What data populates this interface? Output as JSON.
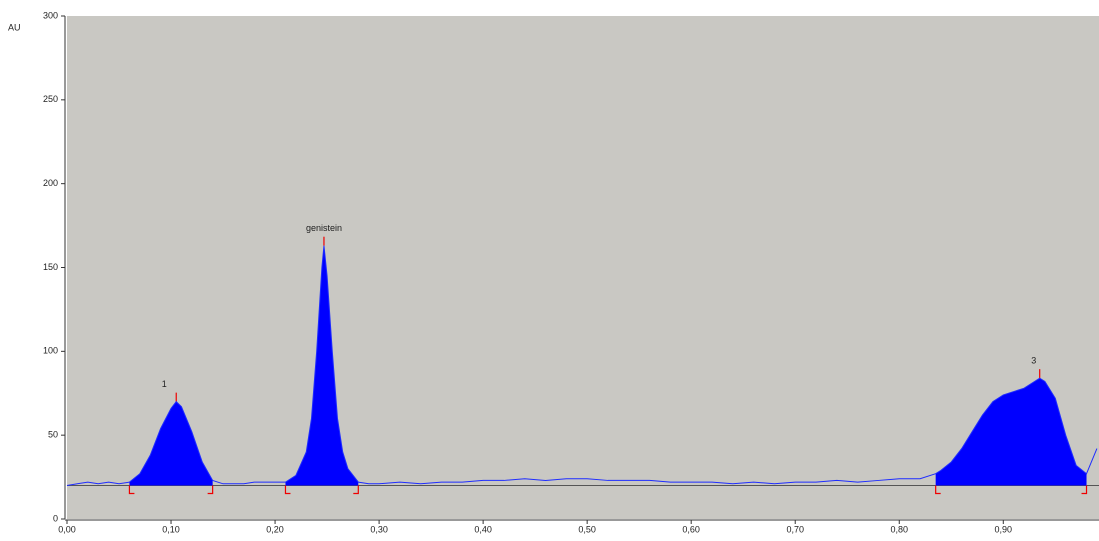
{
  "chart_data": {
    "type": "chromatogram",
    "y_label": "AU",
    "xlim": [
      0,
      0.992
    ],
    "ylim": [
      0,
      300
    ],
    "xticks": [
      {
        "value": 0,
        "label": "0,00"
      },
      {
        "value": 0.1,
        "label": "0,10"
      },
      {
        "value": 0.2,
        "label": "0,20"
      },
      {
        "value": 0.3,
        "label": "0,30"
      },
      {
        "value": 0.4,
        "label": "0,40"
      },
      {
        "value": 0.5,
        "label": "0,50"
      },
      {
        "value": 0.6,
        "label": "0,60"
      },
      {
        "value": 0.7,
        "label": "0,70"
      },
      {
        "value": 0.8,
        "label": "0,80"
      },
      {
        "value": 0.9,
        "label": "0,90"
      }
    ],
    "yticks": [
      0,
      50,
      100,
      150,
      200,
      250,
      300
    ],
    "baseline": 20,
    "trace": {
      "color": "#1e2cff",
      "fill": "#0000ff",
      "x": [
        0,
        0.01,
        0.02,
        0.03,
        0.04,
        0.05,
        0.06,
        0.07,
        0.08,
        0.09,
        0.1,
        0.105,
        0.11,
        0.12,
        0.13,
        0.14,
        0.15,
        0.16,
        0.17,
        0.18,
        0.19,
        0.2,
        0.21,
        0.22,
        0.23,
        0.235,
        0.24,
        0.245,
        0.247,
        0.25,
        0.255,
        0.26,
        0.265,
        0.27,
        0.28,
        0.29,
        0.3,
        0.32,
        0.34,
        0.36,
        0.38,
        0.4,
        0.42,
        0.44,
        0.46,
        0.48,
        0.5,
        0.52,
        0.54,
        0.56,
        0.58,
        0.6,
        0.62,
        0.64,
        0.66,
        0.68,
        0.7,
        0.72,
        0.74,
        0.76,
        0.78,
        0.8,
        0.82,
        0.835,
        0.84,
        0.85,
        0.86,
        0.87,
        0.88,
        0.89,
        0.9,
        0.91,
        0.92,
        0.93,
        0.935,
        0.94,
        0.95,
        0.96,
        0.97,
        0.98,
        0.99
      ],
      "values": [
        20,
        21,
        22,
        21,
        22,
        21,
        22,
        27,
        38,
        54,
        66,
        70,
        67,
        52,
        34,
        23,
        21,
        21,
        21,
        22,
        22,
        22,
        22,
        26,
        40,
        60,
        100,
        150,
        163,
        145,
        100,
        60,
        40,
        30,
        22,
        21,
        21,
        22,
        21,
        22,
        22,
        23,
        23,
        24,
        23,
        24,
        24,
        23,
        23,
        23,
        22,
        22,
        22,
        21,
        22,
        21,
        22,
        22,
        23,
        22,
        23,
        24,
        24,
        27,
        29,
        34,
        42,
        52,
        62,
        70,
        74,
        76,
        78,
        82,
        84,
        82,
        72,
        50,
        32,
        27,
        42
      ]
    },
    "peaks": [
      {
        "label": "1",
        "start": 0.06,
        "apex": 0.105,
        "end": 0.14
      },
      {
        "label": "genistein",
        "start": 0.21,
        "apex": 0.247,
        "end": 0.28
      },
      {
        "label": "3",
        "start": 0.835,
        "apex": 0.935,
        "end": 0.98
      }
    ]
  }
}
